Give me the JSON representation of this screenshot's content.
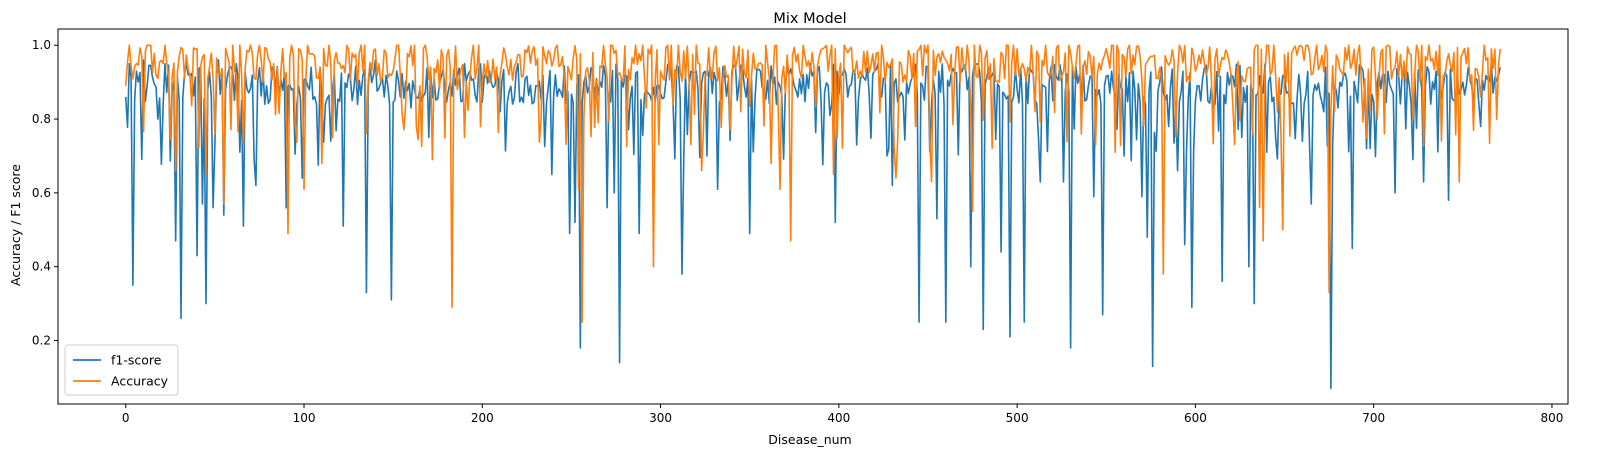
{
  "chart_data": {
    "type": "line",
    "title": "Mix Model",
    "xlabel": "Disease_num",
    "ylabel": "Accuracy / F1 score",
    "xlim": [
      -38,
      809
    ],
    "ylim": [
      0.028,
      1.044
    ],
    "xticks": [
      0,
      100,
      200,
      300,
      400,
      500,
      600,
      700,
      800
    ],
    "yticks": [
      0.2,
      0.4,
      0.6,
      0.8,
      1.0
    ],
    "xtick_labels": [
      "0",
      "100",
      "200",
      "300",
      "400",
      "500",
      "600",
      "700",
      "800"
    ],
    "ytick_labels": [
      "0.2",
      "0.4",
      "0.6",
      "0.8",
      "1.0"
    ],
    "grid": false,
    "legend_position": "lower-left",
    "n_points": 772,
    "series": [
      {
        "name": "f1-score",
        "color": "#1f77b4",
        "baseline_value": 0.9,
        "keypoints": [
          [
            0,
            0.86
          ],
          [
            2,
            0.95
          ],
          [
            4,
            0.35
          ],
          [
            6,
            0.93
          ],
          [
            10,
            0.96
          ],
          [
            18,
            0.8
          ],
          [
            22,
            0.95
          ],
          [
            28,
            0.47
          ],
          [
            30,
            0.85
          ],
          [
            31,
            0.26
          ],
          [
            34,
            0.95
          ],
          [
            40,
            0.43
          ],
          [
            43,
            0.57
          ],
          [
            45,
            0.3
          ],
          [
            49,
            0.56
          ],
          [
            52,
            0.96
          ],
          [
            55,
            0.54
          ],
          [
            62,
            0.95
          ],
          [
            66,
            0.51
          ],
          [
            73,
            0.62
          ],
          [
            79,
            0.89
          ],
          [
            83,
            0.94
          ],
          [
            90,
            0.56
          ],
          [
            96,
            0.84
          ],
          [
            99,
            0.64
          ],
          [
            104,
            0.94
          ],
          [
            110,
            0.86
          ],
          [
            122,
            0.51
          ],
          [
            130,
            0.84
          ],
          [
            135,
            0.33
          ],
          [
            140,
            0.96
          ],
          [
            145,
            0.86
          ],
          [
            149,
            0.31
          ],
          [
            152,
            0.93
          ],
          [
            160,
            0.83
          ],
          [
            170,
            0.75
          ],
          [
            182,
            0.9
          ],
          [
            190,
            0.95
          ],
          [
            210,
            0.82
          ],
          [
            220,
            0.95
          ],
          [
            230,
            0.89
          ],
          [
            239,
            0.65
          ],
          [
            249,
            0.49
          ],
          [
            252,
            0.52
          ],
          [
            254,
            0.92
          ],
          [
            255,
            0.18
          ],
          [
            257,
            0.9
          ],
          [
            262,
            0.93
          ],
          [
            270,
            0.56
          ],
          [
            274,
            0.6
          ],
          [
            277,
            0.14
          ],
          [
            280,
            0.92
          ],
          [
            288,
            0.49
          ],
          [
            295,
            0.85
          ],
          [
            305,
            0.95
          ],
          [
            312,
            0.38
          ],
          [
            320,
            0.93
          ],
          [
            332,
            0.61
          ],
          [
            340,
            0.93
          ],
          [
            350,
            0.49
          ],
          [
            356,
            0.93
          ],
          [
            365,
            0.84
          ],
          [
            372,
            0.92
          ],
          [
            384,
            0.95
          ],
          [
            395,
            0.81
          ],
          [
            398,
            0.52
          ],
          [
            402,
            0.92
          ],
          [
            410,
            0.73
          ],
          [
            420,
            0.93
          ],
          [
            430,
            0.62
          ],
          [
            438,
            0.9
          ],
          [
            445,
            0.25
          ],
          [
            450,
            0.94
          ],
          [
            455,
            0.53
          ],
          [
            460,
            0.25
          ],
          [
            468,
            0.94
          ],
          [
            474,
            0.4
          ],
          [
            478,
            0.95
          ],
          [
            481,
            0.23
          ],
          [
            487,
            0.93
          ],
          [
            491,
            0.44
          ],
          [
            496,
            0.21
          ],
          [
            500,
            0.88
          ],
          [
            504,
            0.25
          ],
          [
            508,
            0.93
          ],
          [
            513,
            0.63
          ],
          [
            520,
            0.85
          ],
          [
            526,
            0.63
          ],
          [
            530,
            0.18
          ],
          [
            535,
            0.92
          ],
          [
            543,
            0.59
          ],
          [
            548,
            0.27
          ],
          [
            552,
            0.87
          ],
          [
            560,
            0.7
          ],
          [
            566,
            0.88
          ],
          [
            570,
            0.59
          ],
          [
            573,
            0.48
          ],
          [
            576,
            0.13
          ],
          [
            580,
            0.9
          ],
          [
            585,
            0.78
          ],
          [
            590,
            0.66
          ],
          [
            594,
            0.46
          ],
          [
            598,
            0.29
          ],
          [
            602,
            0.89
          ],
          [
            610,
            0.83
          ],
          [
            615,
            0.36
          ],
          [
            620,
            0.92
          ],
          [
            626,
            0.75
          ],
          [
            630,
            0.4
          ],
          [
            633,
            0.3
          ],
          [
            640,
            0.71
          ],
          [
            645,
            0.75
          ],
          [
            650,
            0.92
          ],
          [
            660,
            0.74
          ],
          [
            665,
            0.57
          ],
          [
            672,
            0.82
          ],
          [
            676,
            0.07
          ],
          [
            680,
            0.83
          ],
          [
            688,
            0.45
          ],
          [
            696,
            0.72
          ],
          [
            706,
            0.92
          ],
          [
            712,
            0.6
          ],
          [
            720,
            0.89
          ],
          [
            728,
            0.63
          ],
          [
            735,
            0.93
          ],
          [
            742,
            0.58
          ],
          [
            750,
            0.9
          ],
          [
            760,
            0.78
          ],
          [
            766,
            0.95
          ],
          [
            771,
            0.94
          ]
        ]
      },
      {
        "name": "Accuracy",
        "color": "#ff7f0e",
        "baseline_value": 0.96,
        "keypoints": [
          [
            0,
            0.89
          ],
          [
            2,
            1.0
          ],
          [
            6,
            0.95
          ],
          [
            12,
            1.0
          ],
          [
            18,
            0.91
          ],
          [
            28,
            0.66
          ],
          [
            30,
            0.97
          ],
          [
            40,
            0.99
          ],
          [
            45,
            0.65
          ],
          [
            50,
            0.76
          ],
          [
            55,
            0.57
          ],
          [
            60,
            1.0
          ],
          [
            66,
            0.73
          ],
          [
            75,
            1.0
          ],
          [
            85,
            0.94
          ],
          [
            91,
            0.49
          ],
          [
            95,
            0.79
          ],
          [
            100,
            0.61
          ],
          [
            106,
            0.97
          ],
          [
            110,
            0.68
          ],
          [
            118,
            0.98
          ],
          [
            130,
            0.89
          ],
          [
            140,
            0.99
          ],
          [
            150,
            0.93
          ],
          [
            157,
            0.84
          ],
          [
            165,
            0.89
          ],
          [
            172,
            0.69
          ],
          [
            176,
            0.88
          ],
          [
            180,
            0.97
          ],
          [
            183,
            0.29
          ],
          [
            186,
            0.88
          ],
          [
            195,
            1.0
          ],
          [
            210,
            0.92
          ],
          [
            225,
            0.98
          ],
          [
            240,
            0.96
          ],
          [
            254,
            0.61
          ],
          [
            256,
            0.25
          ],
          [
            258,
            0.93
          ],
          [
            265,
            0.79
          ],
          [
            272,
            1.0
          ],
          [
            285,
            0.95
          ],
          [
            292,
            0.83
          ],
          [
            296,
            0.4
          ],
          [
            300,
            0.93
          ],
          [
            310,
            1.0
          ],
          [
            323,
            0.66
          ],
          [
            330,
            0.98
          ],
          [
            345,
            0.82
          ],
          [
            355,
            0.95
          ],
          [
            362,
            0.68
          ],
          [
            367,
            0.61
          ],
          [
            370,
            0.87
          ],
          [
            373,
            0.47
          ],
          [
            378,
            0.93
          ],
          [
            385,
            0.98
          ],
          [
            397,
            0.65
          ],
          [
            405,
            0.98
          ],
          [
            420,
            0.93
          ],
          [
            432,
            0.64
          ],
          [
            440,
            0.97
          ],
          [
            452,
            0.63
          ],
          [
            460,
            0.96
          ],
          [
            468,
            0.9
          ],
          [
            475,
            0.55
          ],
          [
            480,
            0.98
          ],
          [
            490,
            0.9
          ],
          [
            500,
            0.99
          ],
          [
            510,
            0.82
          ],
          [
            520,
            0.97
          ],
          [
            535,
            1.0
          ],
          [
            545,
            0.92
          ],
          [
            555,
            0.71
          ],
          [
            562,
            0.99
          ],
          [
            575,
            0.97
          ],
          [
            582,
            0.38
          ],
          [
            588,
            0.96
          ],
          [
            600,
            0.93
          ],
          [
            612,
            0.99
          ],
          [
            620,
            0.92
          ],
          [
            630,
            0.94
          ],
          [
            636,
            0.56
          ],
          [
            638,
            0.47
          ],
          [
            642,
            0.92
          ],
          [
            649,
            0.5
          ],
          [
            652,
            0.98
          ],
          [
            665,
            0.92
          ],
          [
            675,
            0.33
          ],
          [
            678,
            0.82
          ],
          [
            685,
            0.96
          ],
          [
            695,
            0.91
          ],
          [
            702,
            0.8
          ],
          [
            712,
            0.94
          ],
          [
            722,
            0.8
          ],
          [
            730,
            0.96
          ],
          [
            745,
            0.98
          ],
          [
            748,
            0.63
          ],
          [
            752,
            0.95
          ],
          [
            760,
            0.86
          ],
          [
            766,
            0.99
          ],
          [
            769,
            0.8
          ],
          [
            771,
            0.99
          ]
        ]
      }
    ]
  }
}
